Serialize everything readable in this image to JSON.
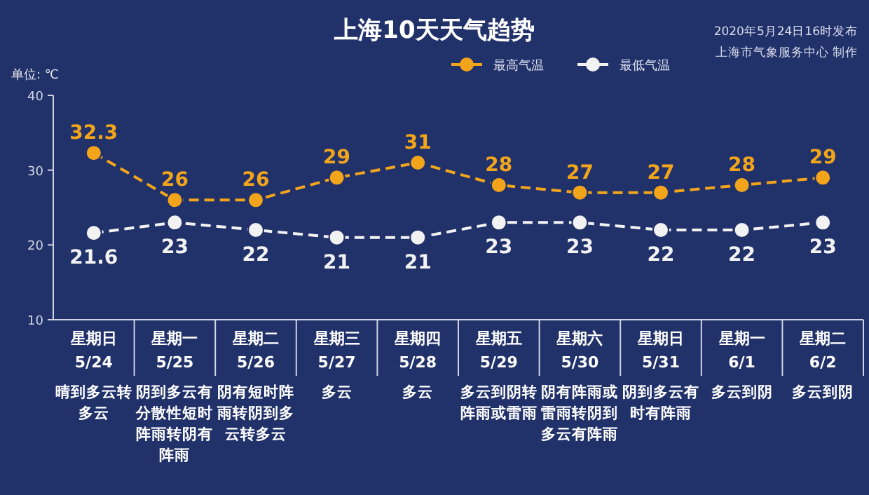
{
  "chart_data": {
    "type": "line",
    "title": "上海10天天气趋势",
    "ylabel": "单位: ℃",
    "categories": [
      "星期日 5/24",
      "星期一 5/25",
      "星期二 5/26",
      "星期三 5/27",
      "星期四 5/28",
      "星期五 5/29",
      "星期六 5/30",
      "星期日 5/31",
      "星期一 6/1",
      "星期二 6/2"
    ],
    "series": [
      {
        "name": "最高气温",
        "color": "#f2a51a",
        "values": [
          32.3,
          26,
          26,
          29,
          31,
          28,
          27,
          27,
          28,
          29
        ]
      },
      {
        "name": "最低气温",
        "color": "#f2f2f2",
        "values": [
          21.6,
          23,
          22,
          21,
          21,
          23,
          23,
          22,
          22,
          23
        ]
      }
    ],
    "ylim": [
      10,
      40
    ],
    "yticks": [
      10,
      20,
      30,
      40
    ],
    "data_labels": true,
    "legend": "top",
    "marker": "circle",
    "line_style": "dashed",
    "annotations": [
      "晴到多云转多云",
      "阴到多云有分散性短时阵雨转阴有阵雨",
      "阴有短时阵雨转阴到多云转多云",
      "多云",
      "多云",
      "多云到阴转阵雨或雷雨",
      "阴有阵雨或雷雨转阴到多云有阵雨",
      "阴到多云有时有阵雨",
      "多云到阴",
      "多云到阴",
      "2020年5月24日16时发布",
      "上海市气象服务中心 制作"
    ]
  }
}
